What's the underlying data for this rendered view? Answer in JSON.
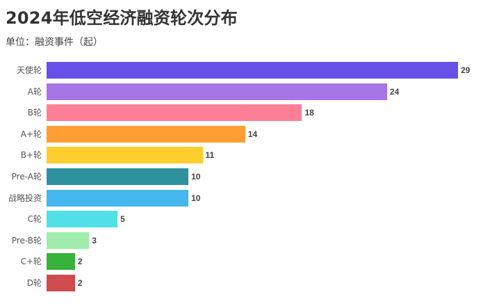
{
  "header": {
    "title": "2024年低空经济融资轮次分布",
    "subtitle": "单位：融资事件（起）"
  },
  "chart_data": {
    "type": "bar",
    "orientation": "horizontal",
    "title": "2024年低空经济融资轮次分布",
    "subtitle": "单位：融资事件（起）",
    "xlabel": "",
    "ylabel": "",
    "unit": "融资事件（起）",
    "grid": false,
    "legend": "none",
    "xlim": [
      0,
      29
    ],
    "categories": [
      "天使轮",
      "A轮",
      "B轮",
      "A+轮",
      "B+轮",
      "Pre-A轮",
      "战略投资",
      "C轮",
      "Pre-B轮",
      "C+轮",
      "D轮"
    ],
    "values": [
      29,
      24,
      18,
      14,
      11,
      10,
      10,
      5,
      3,
      2,
      2
    ],
    "colors": [
      "#6750e8",
      "#a674e4",
      "#fe7e98",
      "#ff9e32",
      "#ffcd2e",
      "#2e929e",
      "#45b6ee",
      "#50e0e6",
      "#9fecac",
      "#37b23a",
      "#cf4b4d"
    ],
    "data_labels": true
  }
}
